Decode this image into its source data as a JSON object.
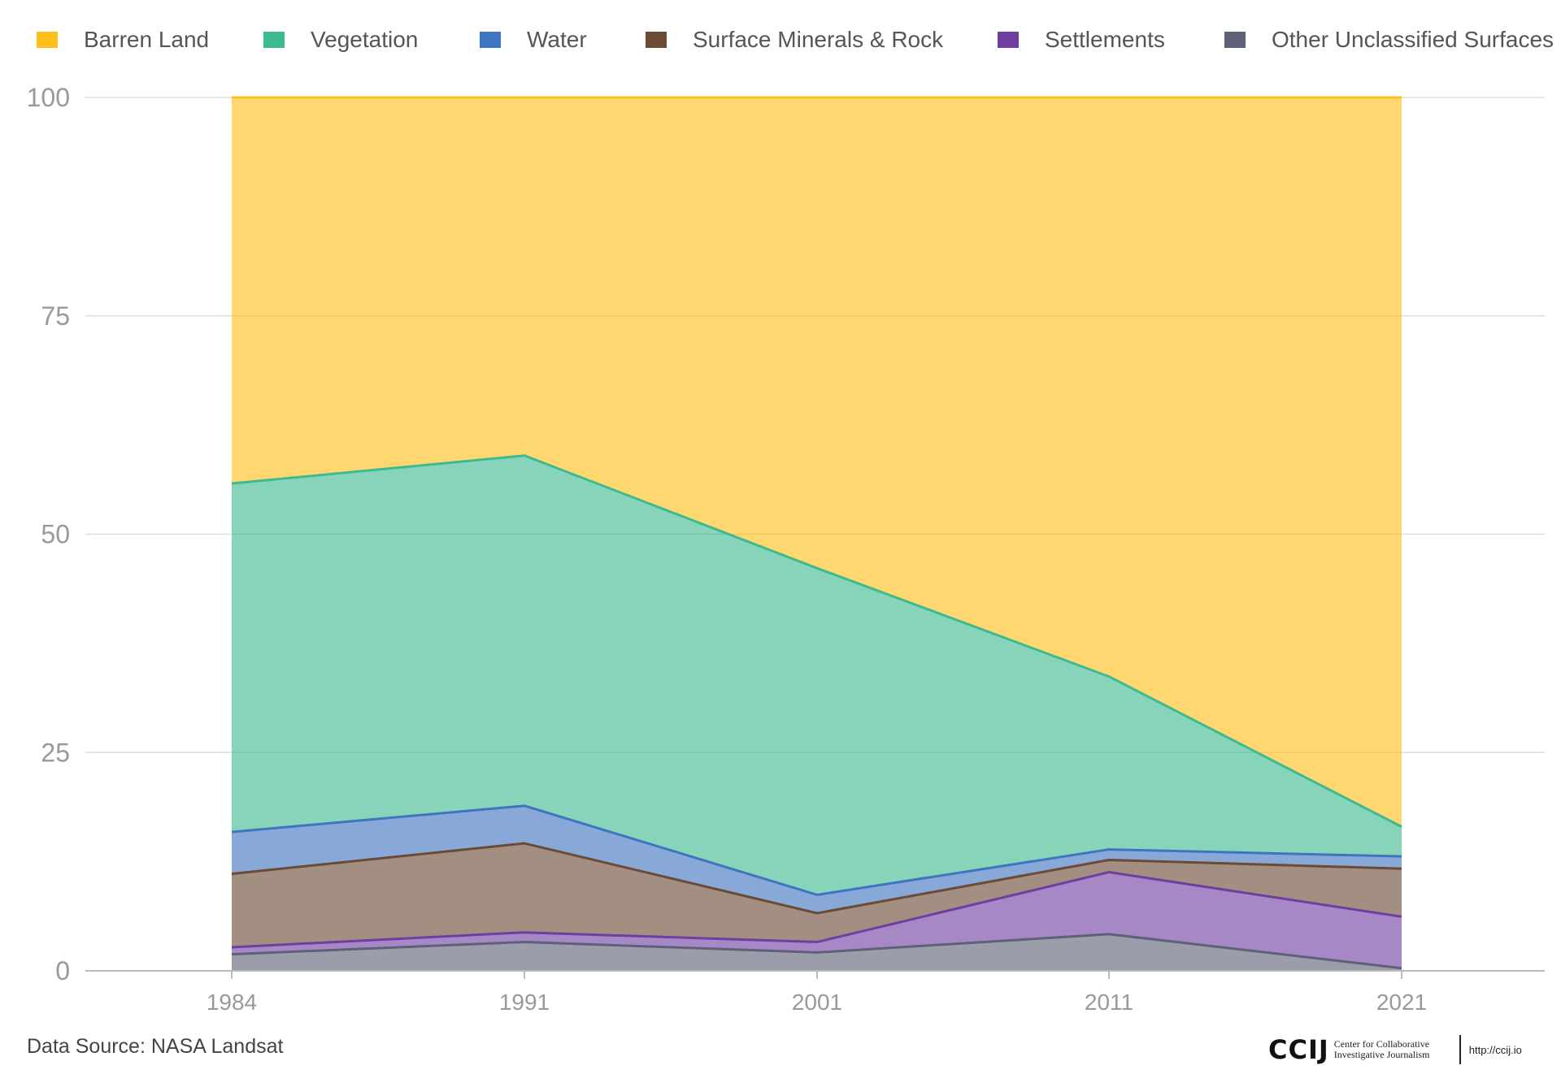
{
  "legend": {
    "items": [
      {
        "label": "Barren Land",
        "color": "#FFBF1A"
      },
      {
        "label": "Vegetation",
        "color": "#3DBA8F"
      },
      {
        "label": "Water",
        "color": "#3F74C0"
      },
      {
        "label": "Surface Minerals & Rock",
        "color": "#6B4A36"
      },
      {
        "label": "Settlements",
        "color": "#6E3FA1"
      },
      {
        "label": "Other Unclassified Surfaces",
        "color": "#5E6178"
      }
    ]
  },
  "chart_data": {
    "type": "area",
    "stacked": true,
    "title": "",
    "xlabel": "",
    "ylabel": "",
    "categories": [
      "1984",
      "1991",
      "2001",
      "2011",
      "2021"
    ],
    "ylim": [
      0,
      100
    ],
    "yticks": [
      0,
      25,
      50,
      75,
      100
    ],
    "grid": true,
    "legend_position": "top",
    "series": [
      {
        "name": "Other Unclassified Surfaces",
        "color": "#5E6178",
        "values": [
          1.9,
          3.3,
          2.1,
          4.2,
          0.3
        ]
      },
      {
        "name": "Settlements",
        "color": "#6E3FA1",
        "values": [
          0.8,
          1.1,
          1.2,
          7.1,
          5.9
        ]
      },
      {
        "name": "Surface Minerals & Rock",
        "color": "#6B4A36",
        "values": [
          8.4,
          10.2,
          3.3,
          1.4,
          5.5
        ]
      },
      {
        "name": "Water",
        "color": "#3F74C0",
        "values": [
          4.8,
          4.3,
          2.1,
          1.2,
          1.4
        ]
      },
      {
        "name": "Vegetation",
        "color": "#3DBA8F",
        "values": [
          39.9,
          40.1,
          37.4,
          19.8,
          3.4
        ]
      },
      {
        "name": "Barren Land",
        "color": "#FFBF1A",
        "values": [
          44.2,
          41.0,
          53.9,
          66.3,
          83.5
        ]
      }
    ]
  },
  "footer": {
    "source": "Data Source: NASA Landsat",
    "brand_logo": "CCIJ",
    "brand_name": "Center for Collaborative Investigative Journalism",
    "brand_url": "http://ccij.io"
  }
}
